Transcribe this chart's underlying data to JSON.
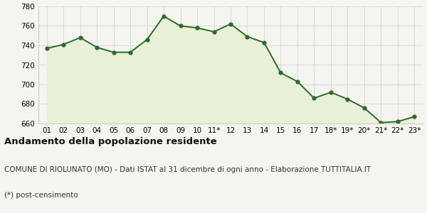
{
  "x_labels": [
    "01",
    "02",
    "03",
    "04",
    "05",
    "06",
    "07",
    "08",
    "09",
    "10",
    "11*",
    "12",
    "13",
    "14",
    "15",
    "16",
    "17",
    "18*",
    "19*",
    "20*",
    "21*",
    "22*",
    "23*"
  ],
  "values": [
    737,
    741,
    748,
    738,
    733,
    733,
    746,
    770,
    760,
    758,
    754,
    762,
    749,
    743,
    712,
    703,
    686,
    692,
    685,
    676,
    661,
    662,
    667
  ],
  "ylim": [
    660,
    780
  ],
  "yticks": [
    660,
    680,
    700,
    720,
    740,
    760,
    780
  ],
  "line_color": "#2d6a2d",
  "fill_color": "#e8f0d8",
  "marker": "o",
  "marker_size": 3.5,
  "line_width": 1.4,
  "bg_color": "#f5f5f0",
  "plot_bg_color": "#f5f5f0",
  "title": "Andamento della popolazione residente",
  "subtitle": "COMUNE DI RIOLUNATO (MO) - Dati ISTAT al 31 dicembre di ogni anno - Elaborazione TUTTITALIA.IT",
  "footnote": "(*) post-censimento",
  "title_fontsize": 9.5,
  "subtitle_fontsize": 7.5,
  "footnote_fontsize": 7.5,
  "grid_color": "#cccccc",
  "tick_fontsize": 7.5
}
